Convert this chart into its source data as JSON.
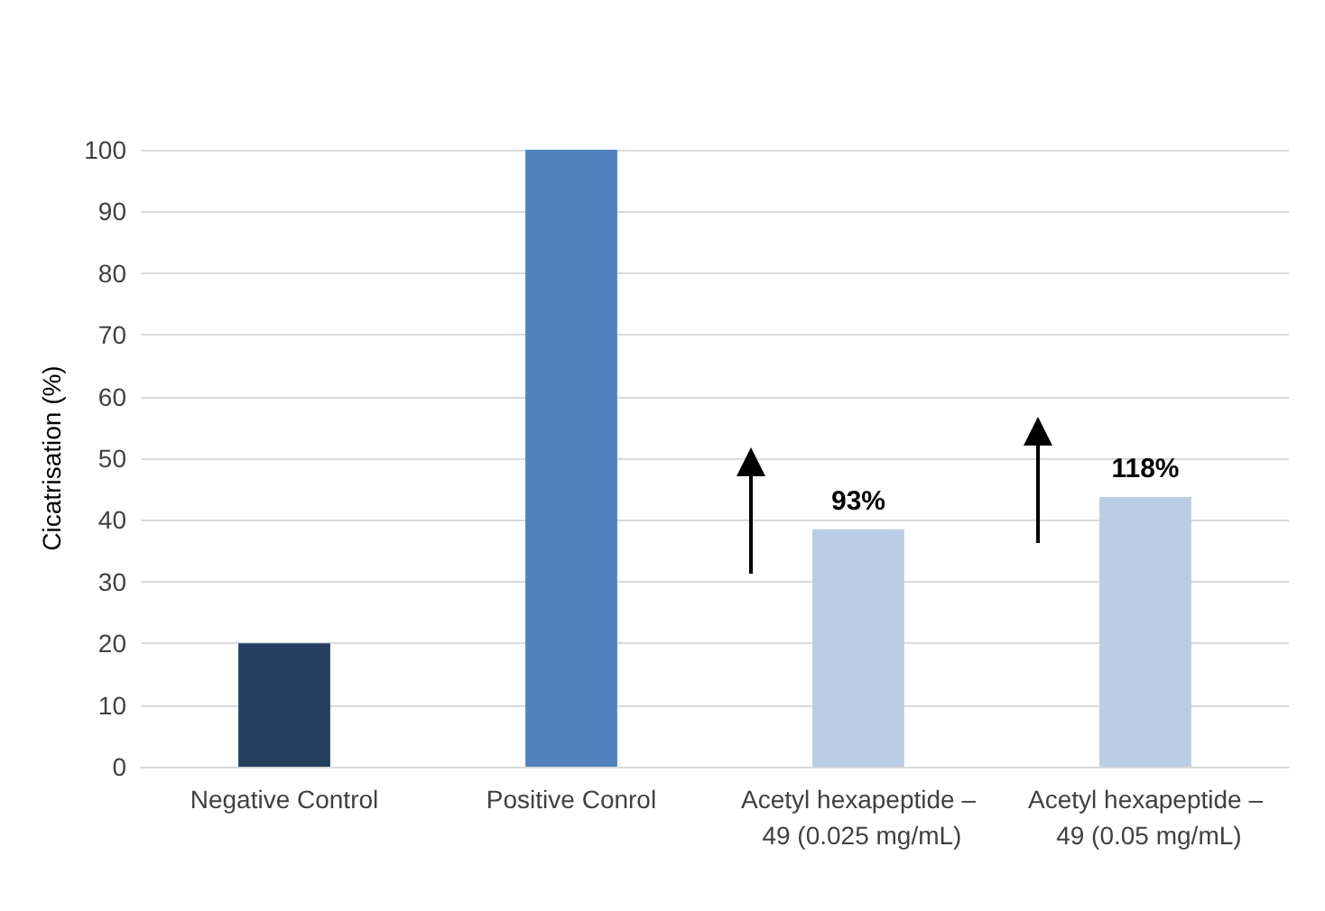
{
  "chart_data": {
    "type": "bar",
    "ylabel": "Cicatrisation (%)",
    "categories": [
      "Negative Control",
      "Positive Conrol",
      "Acetyl hexapeptide – 49 (0.025 mg/mL)",
      "Acetyl hexapeptide – 49 (0.05 mg/mL)"
    ],
    "values": [
      20,
      100,
      38.5,
      43.7
    ],
    "colors": [
      "#243f60",
      "#4f81bd",
      "#b9cde5",
      "#b9cde5"
    ],
    "ylim": [
      0,
      100
    ],
    "yticks": [
      0,
      10,
      20,
      30,
      40,
      50,
      60,
      70,
      80,
      90,
      100
    ],
    "grid": "y",
    "annotations": [
      {
        "text": "93%",
        "x": "Acetyl hexapeptide – 49 (0.025 mg/mL)",
        "y": 38.5
      },
      {
        "text": "118%",
        "x": "Acetyl hexapeptide – 49 (0.05 mg/mL)",
        "y": 43.7
      }
    ]
  }
}
